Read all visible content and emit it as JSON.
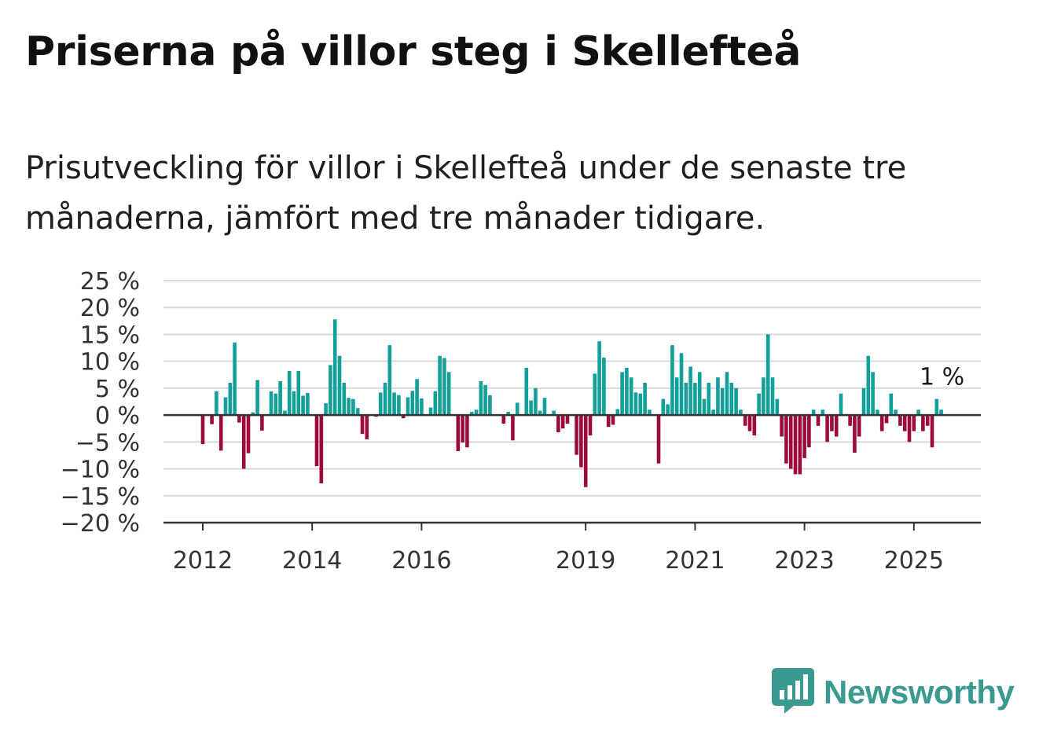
{
  "title": "Priserna på villor steg i Skellefteå",
  "subtitle": "Prisutveckling för villor i Skellefteå under de senaste tre månaderna, jämfört med tre månader tidigare.",
  "brand": {
    "name": "Newsworthy",
    "icon": "newsworthy-logo-icon",
    "color": "#3a9a92"
  },
  "colors": {
    "positive": "#12a09a",
    "negative": "#9c0a3e",
    "grid": "#d9d9d9",
    "axis": "#333333"
  },
  "chart_data": {
    "type": "bar",
    "ylim": [
      -20,
      25
    ],
    "y_ticks": [
      25,
      20,
      15,
      10,
      5,
      0,
      -5,
      -10,
      -15,
      -20
    ],
    "y_tick_labels": [
      "25 %",
      "20 %",
      "15 %",
      "10 %",
      "5 %",
      "0 %",
      "−5 %",
      "−10 %",
      "−15 %",
      "−20 %"
    ],
    "x_ticks": [
      "2012",
      "2014",
      "2016",
      "2019",
      "2021",
      "2023",
      "2025"
    ],
    "x_tick_month_index": [
      0,
      24,
      48,
      84,
      108,
      132,
      156
    ],
    "grid": true,
    "last_label": "1 %",
    "values": [
      -5.4,
      0,
      -1.7,
      4.4,
      -6.6,
      3.3,
      6.0,
      13.5,
      -1.4,
      -10.0,
      -7.1,
      0.5,
      6.5,
      -2.9,
      0,
      4.4,
      4.0,
      6.3,
      0.8,
      8.2,
      4.4,
      8.2,
      3.6,
      4.1,
      0,
      -9.5,
      -12.7,
      2.2,
      9.3,
      17.8,
      11.0,
      6.0,
      3.2,
      3.0,
      1.3,
      -3.5,
      -4.5,
      0,
      -0.3,
      4.2,
      6.0,
      13.0,
      4.2,
      3.7,
      -0.6,
      3.3,
      4.5,
      6.7,
      3.1,
      0,
      1.4,
      4.4,
      11.0,
      10.6,
      8.0,
      0,
      -6.7,
      -5.1,
      -6.0,
      0.6,
      1.0,
      6.3,
      5.6,
      3.7,
      0,
      0,
      -1.6,
      0.6,
      -4.7,
      2.3,
      0,
      8.8,
      2.7,
      5.0,
      0.8,
      3.2,
      0,
      0.8,
      -3.2,
      -2.5,
      -1.6,
      0,
      -7.4,
      -9.7,
      -13.4,
      -3.8,
      7.7,
      13.7,
      10.7,
      -2.2,
      -1.8,
      1.1,
      8.0,
      8.8,
      7.0,
      4.2,
      4.0,
      6.0,
      1.0,
      0,
      -9.0,
      3.0,
      2.0,
      13.0,
      7.0,
      11.5,
      6.0,
      9.0,
      6.0,
      8.0,
      3.0,
      6.0,
      1.0,
      7.0,
      5.0,
      8.0,
      6.0,
      5.0,
      1.0,
      -2.0,
      -3.0,
      -3.8,
      4.0,
      7.0,
      15.0,
      7.0,
      3.0,
      -4.0,
      -9.0,
      -10.0,
      -11.0,
      -11.0,
      -8.0,
      -6.0,
      1.0,
      -2.0,
      1.0,
      -5.0,
      -3.0,
      -4.0,
      4.0,
      0,
      -2.0,
      -7.0,
      -4.0,
      5.0,
      11.0,
      8.0,
      1.0,
      -3.0,
      -1.5,
      4.0,
      1.0,
      -2.0,
      -3.0,
      -5.0,
      -3.0,
      1.0,
      -3.0,
      -2.0,
      -6.0,
      3.0,
      1.0
    ]
  }
}
